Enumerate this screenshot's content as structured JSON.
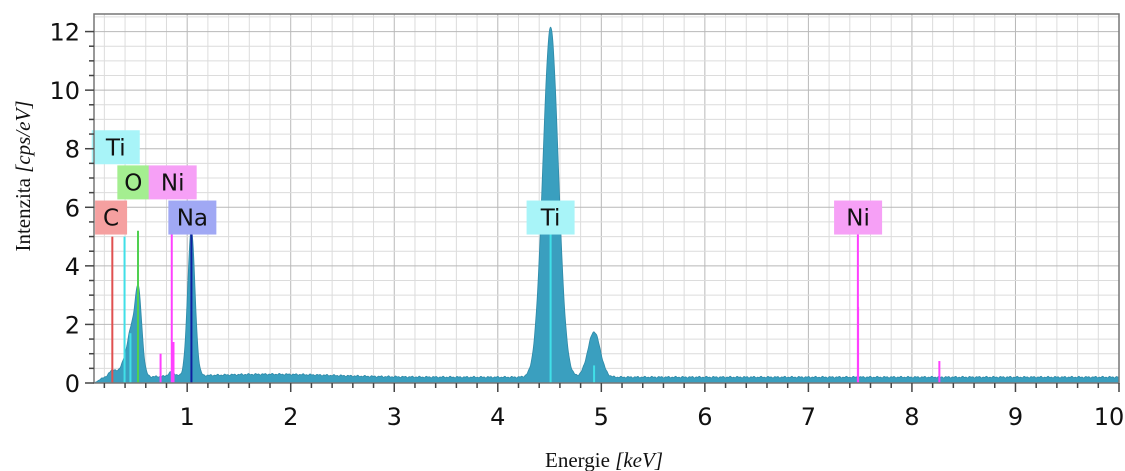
{
  "chart_data": {
    "type": "area",
    "xlabel_main": "Energie",
    "xlabel_unit": "[keV]",
    "ylabel_main": "Intenzita",
    "ylabel_unit": "[cps/eV]",
    "xlim": [
      0.1,
      10
    ],
    "ylim": [
      0,
      12.6
    ],
    "x_ticks": [
      1,
      2,
      3,
      4,
      5,
      6,
      7,
      8,
      9,
      10
    ],
    "y_ticks": [
      0,
      2,
      4,
      6,
      8,
      10,
      12
    ],
    "grid": true,
    "spectrum": {
      "color": "#3a9fbf",
      "baseline": 0.2,
      "background_hump": {
        "center": 1.8,
        "width": 0.6,
        "height": 0.1
      },
      "peaks": [
        {
          "center": 0.28,
          "width": 0.03,
          "height": 0.25
        },
        {
          "center": 0.39,
          "width": 0.04,
          "height": 0.5
        },
        {
          "center": 0.45,
          "width": 0.03,
          "height": 1.2
        },
        {
          "center": 0.525,
          "width": 0.035,
          "height": 3.1
        },
        {
          "center": 0.85,
          "width": 0.03,
          "height": 0.15
        },
        {
          "center": 1.04,
          "width": 0.035,
          "height": 5.0
        },
        {
          "center": 4.51,
          "width": 0.075,
          "height": 11.95
        },
        {
          "center": 4.93,
          "width": 0.06,
          "height": 1.55
        }
      ]
    },
    "element_lines": [
      {
        "element": "C",
        "energy": 0.277,
        "height": 5.0,
        "color": "#e05050"
      },
      {
        "element": "Ti",
        "energy": 0.395,
        "height": 5.0,
        "color": "#40e0e8"
      },
      {
        "element": "Ti",
        "energy": 0.452,
        "height": 1.7,
        "color": "#40e0e8"
      },
      {
        "element": "O",
        "energy": 0.525,
        "height": 5.2,
        "color": "#50d050"
      },
      {
        "element": "Ni",
        "energy": 0.743,
        "height": 1.0,
        "color": "#ff40ff"
      },
      {
        "element": "Ni",
        "energy": 0.851,
        "height": 5.8,
        "color": "#ff40ff"
      },
      {
        "element": "Ni",
        "energy": 0.868,
        "height": 1.4,
        "color": "#ff40ff"
      },
      {
        "element": "Na",
        "energy": 1.041,
        "height": 5.5,
        "color": "#1020a0"
      },
      {
        "element": "Ti",
        "energy": 4.51,
        "height": 5.5,
        "color": "#40e0e8"
      },
      {
        "element": "Ti",
        "energy": 4.93,
        "height": 0.6,
        "color": "#40e0e8"
      },
      {
        "element": "Ni",
        "energy": 7.478,
        "height": 5.3,
        "color": "#ff40ff"
      },
      {
        "element": "Ni",
        "energy": 7.48,
        "height": 2.6,
        "color": "#ff40ff"
      },
      {
        "element": "Ni",
        "energy": 8.265,
        "height": 0.75,
        "color": "#ff40ff"
      }
    ],
    "element_labels": [
      {
        "text": "Ti",
        "energy": 0.31,
        "value": 8.05,
        "bg": "#a8f4f8"
      },
      {
        "text": "O",
        "energy": 0.48,
        "value": 6.85,
        "bg": "#a4ee90"
      },
      {
        "text": "Ni",
        "energy": 0.86,
        "value": 6.85,
        "bg": "#f6a0f6"
      },
      {
        "text": "C",
        "energy": 0.265,
        "value": 5.65,
        "bg": "#f5a0a0"
      },
      {
        "text": "Na",
        "energy": 1.05,
        "value": 5.65,
        "bg": "#a0a8f4"
      },
      {
        "text": "Ti",
        "energy": 4.51,
        "value": 5.65,
        "bg": "#a8f4f8"
      },
      {
        "text": "Ni",
        "energy": 7.48,
        "value": 5.65,
        "bg": "#f6a0f6"
      }
    ]
  }
}
